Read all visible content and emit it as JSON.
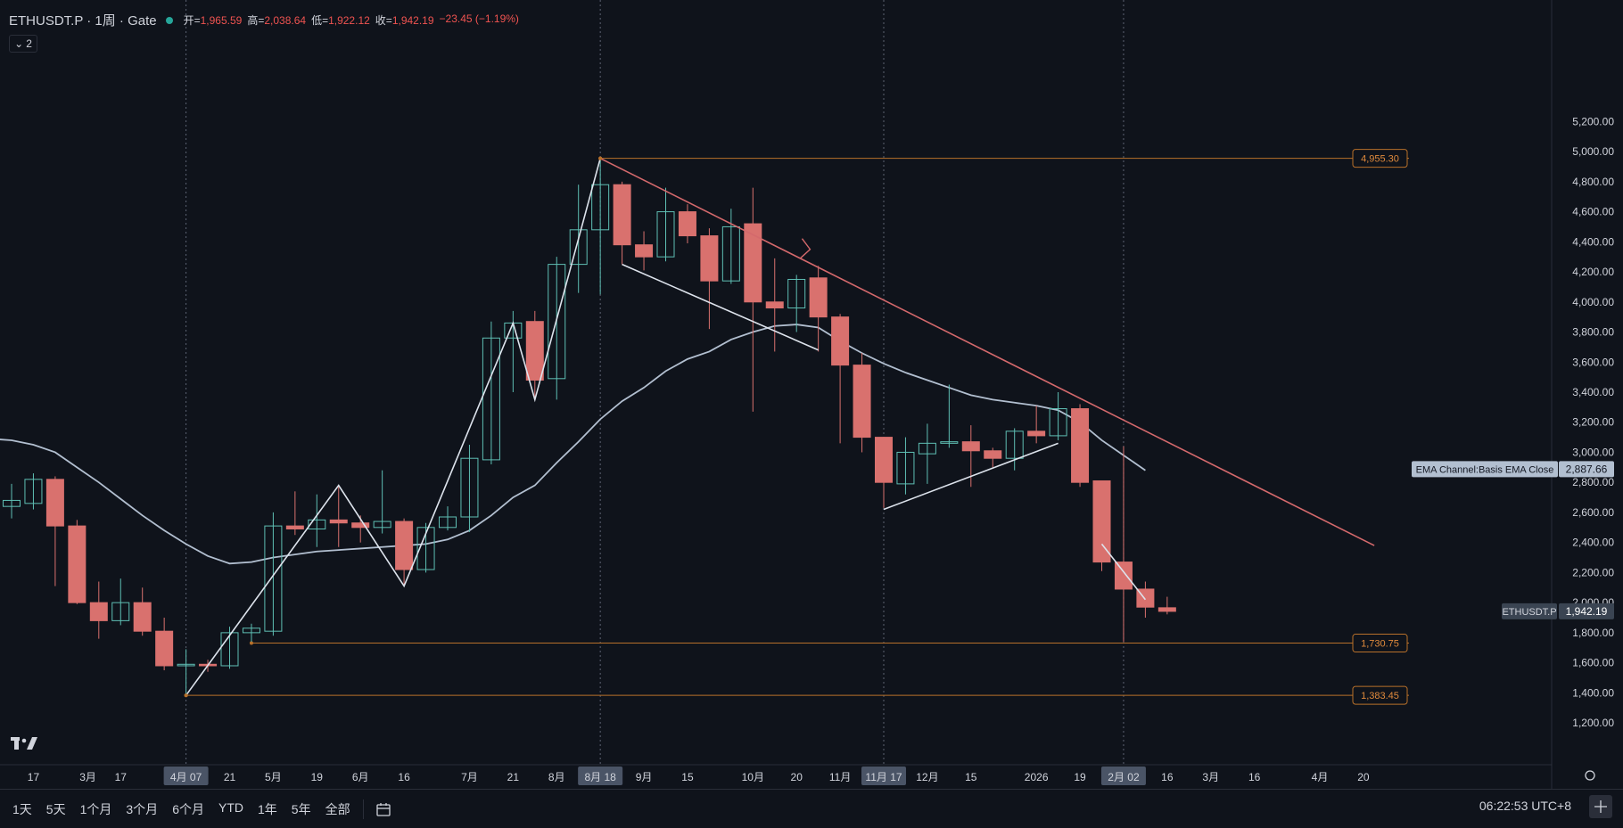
{
  "header": {
    "symbol": "ETHUSDT.P · 1周 · Gate",
    "open_label": "开=",
    "open": "1,965.59",
    "high_label": "高=",
    "high": "2,038.64",
    "low_label": "低=",
    "low": "1,922.12",
    "close_label": "收=",
    "close": "1,942.19",
    "change": "−23.45 (−1.19%)",
    "collapse_count": "2"
  },
  "bottom_bar": {
    "ranges": [
      "1天",
      "5天",
      "1个月",
      "3个月",
      "6个月",
      "YTD",
      "1年",
      "5年",
      "全部"
    ],
    "clock": "06:22:53 UTC+8"
  },
  "colors": {
    "up": "#5fbfb4",
    "down": "#d9716e",
    "ema": "#b2bfd0",
    "trend": "#d4696c",
    "level": "#b8702a",
    "bg": "#0f131b"
  },
  "chart_data": {
    "type": "candlestick",
    "symbol": "ETHUSDT.P",
    "interval": "1周",
    "exchange": "Gate",
    "ylim": [
      1000,
      5350
    ],
    "y_ticks": [
      1200,
      1400,
      1600,
      1800,
      2000,
      2200,
      2400,
      2600,
      2800,
      3000,
      3200,
      3400,
      3600,
      3800,
      4000,
      4200,
      4400,
      4600,
      4800,
      5000,
      5200
    ],
    "x_ticks": [
      {
        "i": 1,
        "label": "17"
      },
      {
        "i": 3.5,
        "label": "3月"
      },
      {
        "i": 5,
        "label": "17"
      },
      {
        "i": 8,
        "label": "4月 07",
        "highlight": true
      },
      {
        "i": 10,
        "label": "21"
      },
      {
        "i": 12,
        "label": "5月"
      },
      {
        "i": 14,
        "label": "19"
      },
      {
        "i": 16,
        "label": "6月"
      },
      {
        "i": 18,
        "label": "16"
      },
      {
        "i": 21,
        "label": "7月"
      },
      {
        "i": 23,
        "label": "21"
      },
      {
        "i": 25,
        "label": "8月"
      },
      {
        "i": 27,
        "label": "8月 18",
        "highlight": true
      },
      {
        "i": 29,
        "label": "9月"
      },
      {
        "i": 31,
        "label": "15"
      },
      {
        "i": 34,
        "label": "10月"
      },
      {
        "i": 36,
        "label": "20"
      },
      {
        "i": 38,
        "label": "11月"
      },
      {
        "i": 40,
        "label": "11月 17",
        "highlight": true
      },
      {
        "i": 42,
        "label": "12月"
      },
      {
        "i": 44,
        "label": "15"
      },
      {
        "i": 47,
        "label": "2026"
      },
      {
        "i": 49,
        "label": "19"
      },
      {
        "i": 51,
        "label": "2月 02",
        "highlight": true
      },
      {
        "i": 53,
        "label": "16"
      },
      {
        "i": 55,
        "label": "3月"
      },
      {
        "i": 57,
        "label": "16"
      },
      {
        "i": 60,
        "label": "4月"
      },
      {
        "i": 62,
        "label": "20"
      }
    ],
    "candles": [
      {
        "o": 2640,
        "h": 2790,
        "l": 2560,
        "c": 2680
      },
      {
        "o": 2660,
        "h": 2860,
        "l": 2620,
        "c": 2820
      },
      {
        "o": 2820,
        "h": 2840,
        "l": 2110,
        "c": 2510
      },
      {
        "o": 2510,
        "h": 2550,
        "l": 1990,
        "c": 2000
      },
      {
        "o": 2000,
        "h": 2140,
        "l": 1760,
        "c": 1880
      },
      {
        "o": 1880,
        "h": 2160,
        "l": 1850,
        "c": 2000
      },
      {
        "o": 2000,
        "h": 2100,
        "l": 1780,
        "c": 1810
      },
      {
        "o": 1810,
        "h": 1900,
        "l": 1550,
        "c": 1580
      },
      {
        "o": 1580,
        "h": 1690,
        "l": 1390,
        "c": 1590
      },
      {
        "o": 1590,
        "h": 1620,
        "l": 1540,
        "c": 1580
      },
      {
        "o": 1580,
        "h": 1840,
        "l": 1560,
        "c": 1800
      },
      {
        "o": 1800,
        "h": 1860,
        "l": 1740,
        "c": 1830
      },
      {
        "o": 1810,
        "h": 2600,
        "l": 1780,
        "c": 2510
      },
      {
        "o": 2510,
        "h": 2740,
        "l": 2450,
        "c": 2490
      },
      {
        "o": 2490,
        "h": 2720,
        "l": 2370,
        "c": 2550
      },
      {
        "o": 2550,
        "h": 2780,
        "l": 2370,
        "c": 2530
      },
      {
        "o": 2530,
        "h": 2580,
        "l": 2400,
        "c": 2500
      },
      {
        "o": 2500,
        "h": 2880,
        "l": 2460,
        "c": 2540
      },
      {
        "o": 2540,
        "h": 2560,
        "l": 2110,
        "c": 2220
      },
      {
        "o": 2220,
        "h": 2530,
        "l": 2200,
        "c": 2500
      },
      {
        "o": 2500,
        "h": 2640,
        "l": 2480,
        "c": 2570
      },
      {
        "o": 2570,
        "h": 3050,
        "l": 2470,
        "c": 2960
      },
      {
        "o": 2950,
        "h": 3870,
        "l": 2920,
        "c": 3760
      },
      {
        "o": 3760,
        "h": 3940,
        "l": 3400,
        "c": 3860
      },
      {
        "o": 3870,
        "h": 3940,
        "l": 3350,
        "c": 3480
      },
      {
        "o": 3490,
        "h": 4300,
        "l": 3350,
        "c": 4250
      },
      {
        "o": 4250,
        "h": 4780,
        "l": 4060,
        "c": 4480
      },
      {
        "o": 4480,
        "h": 4955,
        "l": 4050,
        "c": 4780
      },
      {
        "o": 4780,
        "h": 4800,
        "l": 4250,
        "c": 4380
      },
      {
        "o": 4380,
        "h": 4470,
        "l": 4210,
        "c": 4300
      },
      {
        "o": 4300,
        "h": 4760,
        "l": 4270,
        "c": 4600
      },
      {
        "o": 4600,
        "h": 4650,
        "l": 4390,
        "c": 4440
      },
      {
        "o": 4440,
        "h": 4490,
        "l": 3820,
        "c": 4140
      },
      {
        "o": 4140,
        "h": 4620,
        "l": 4120,
        "c": 4500
      },
      {
        "o": 4520,
        "h": 4760,
        "l": 3270,
        "c": 4000
      },
      {
        "o": 4000,
        "h": 4290,
        "l": 3670,
        "c": 3960
      },
      {
        "o": 3960,
        "h": 4180,
        "l": 3800,
        "c": 4150
      },
      {
        "o": 4160,
        "h": 4240,
        "l": 3670,
        "c": 3900
      },
      {
        "o": 3900,
        "h": 3920,
        "l": 3060,
        "c": 3580
      },
      {
        "o": 3580,
        "h": 3660,
        "l": 3000,
        "c": 3100
      },
      {
        "o": 3100,
        "h": 3090,
        "l": 2630,
        "c": 2800
      },
      {
        "o": 2790,
        "h": 3100,
        "l": 2720,
        "c": 3000
      },
      {
        "o": 2990,
        "h": 3190,
        "l": 2790,
        "c": 3060
      },
      {
        "o": 3060,
        "h": 3450,
        "l": 3030,
        "c": 3070
      },
      {
        "o": 3070,
        "h": 3180,
        "l": 2770,
        "c": 3010
      },
      {
        "o": 3010,
        "h": 3030,
        "l": 2900,
        "c": 2960
      },
      {
        "o": 2960,
        "h": 3160,
        "l": 2880,
        "c": 3140
      },
      {
        "o": 3140,
        "h": 3310,
        "l": 3060,
        "c": 3110
      },
      {
        "o": 3110,
        "h": 3400,
        "l": 3080,
        "c": 3290
      },
      {
        "o": 3290,
        "h": 3320,
        "l": 2770,
        "c": 2800
      },
      {
        "o": 2810,
        "h": 2800,
        "l": 2210,
        "c": 2270
      },
      {
        "o": 2270,
        "h": 3040,
        "l": 1740,
        "c": 2090
      },
      {
        "o": 2090,
        "h": 2140,
        "l": 1900,
        "c": 1970
      },
      {
        "o": 1966,
        "h": 2039,
        "l": 1922,
        "c": 1942
      }
    ],
    "series": [
      {
        "name": "EMA Channel:Basis EMA Close",
        "last": "2,887.66",
        "points": [
          [
            -1,
            3090
          ],
          [
            0,
            3080
          ],
          [
            1,
            3050
          ],
          [
            2,
            3000
          ],
          [
            3,
            2900
          ],
          [
            4,
            2800
          ],
          [
            5,
            2690
          ],
          [
            6,
            2580
          ],
          [
            7,
            2480
          ],
          [
            8,
            2390
          ],
          [
            9,
            2310
          ],
          [
            10,
            2260
          ],
          [
            11,
            2270
          ],
          [
            12,
            2300
          ],
          [
            13,
            2320
          ],
          [
            14,
            2340
          ],
          [
            15,
            2350
          ],
          [
            16,
            2360
          ],
          [
            17,
            2370
          ],
          [
            18,
            2380
          ],
          [
            19,
            2390
          ],
          [
            20,
            2420
          ],
          [
            21,
            2480
          ],
          [
            22,
            2580
          ],
          [
            23,
            2700
          ],
          [
            24,
            2780
          ],
          [
            25,
            2930
          ],
          [
            26,
            3070
          ],
          [
            27,
            3220
          ],
          [
            28,
            3340
          ],
          [
            29,
            3430
          ],
          [
            30,
            3540
          ],
          [
            31,
            3620
          ],
          [
            32,
            3670
          ],
          [
            33,
            3750
          ],
          [
            34,
            3800
          ],
          [
            35,
            3840
          ],
          [
            36,
            3850
          ],
          [
            37,
            3830
          ],
          [
            38,
            3740
          ],
          [
            39,
            3660
          ],
          [
            40,
            3590
          ],
          [
            41,
            3530
          ],
          [
            42,
            3480
          ],
          [
            43,
            3430
          ],
          [
            44,
            3380
          ],
          [
            45,
            3350
          ],
          [
            46,
            3330
          ],
          [
            47,
            3310
          ],
          [
            48,
            3280
          ],
          [
            49,
            3200
          ],
          [
            50,
            3080
          ],
          [
            51,
            2980
          ],
          [
            52,
            2880
          ]
        ]
      }
    ],
    "price_labels": [
      {
        "value": "4,955.30",
        "y": 4955.3
      },
      {
        "value": "1,730.75",
        "y": 1730.75
      },
      {
        "value": "1,383.45",
        "y": 1383.45
      },
      {
        "value": "1,942.19",
        "y": 1942.19,
        "name": "ETHUSDT.P"
      },
      {
        "value": "2,887.66",
        "y": 2887.66,
        "name": "EMA Channel:Basis EMA Close"
      }
    ],
    "levels": [
      {
        "y": 4955.3,
        "from": 27,
        "label": "4,955.30"
      },
      {
        "y": 1730.75,
        "from": 11,
        "label": "1,730.75"
      },
      {
        "y": 1383.45,
        "from": 8,
        "label": "1,383.45"
      }
    ],
    "trendlines": [
      {
        "kind": "trend",
        "p1": [
          27,
          4955
        ],
        "p2": [
          62.5,
          2380
        ]
      },
      {
        "kind": "drawing",
        "p1": [
          28,
          4250
        ],
        "p2": [
          37,
          3680
        ]
      },
      {
        "kind": "drawing",
        "p1": [
          40,
          2620
        ],
        "p2": [
          48,
          3060
        ]
      },
      {
        "kind": "drawing",
        "p1": [
          50,
          2390
        ],
        "p2": [
          52,
          2020
        ]
      }
    ],
    "zigzag": [
      [
        8,
        1383
      ],
      [
        15,
        2780
      ],
      [
        18,
        2110
      ],
      [
        23,
        3860
      ],
      [
        24,
        3350
      ],
      [
        27,
        4955
      ]
    ],
    "vlines": [
      8,
      27,
      40,
      51
    ],
    "grid": false
  }
}
